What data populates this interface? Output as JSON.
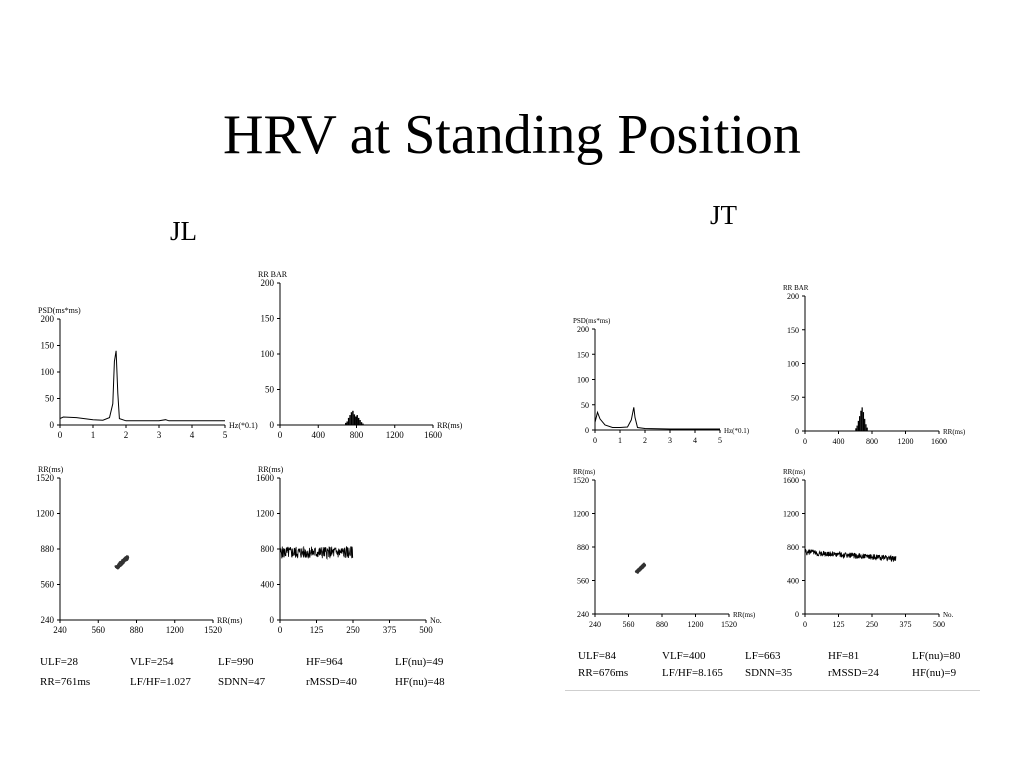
{
  "title": "HRV at Standing Position",
  "subjects": [
    {
      "label": "JL",
      "charts": [
        {
          "type": "line",
          "ylabel": "PSD(ms*ms)",
          "xlabel": "Hz(*0.1)",
          "xlim": [
            0,
            5
          ],
          "ylim": [
            0,
            200
          ],
          "xticks": [
            "0",
            "1",
            "2",
            "3",
            "4",
            "5"
          ],
          "yticks": [
            "0",
            "50",
            "100",
            "150",
            "200"
          ],
          "series": [
            {
              "x": [
                0.0,
                0.1,
                0.5,
                1.0,
                1.3,
                1.5,
                1.6,
                1.65,
                1.7,
                1.75,
                1.8,
                2.0,
                2.5,
                3.0,
                3.2,
                3.3,
                3.5,
                4.0,
                5.0
              ],
              "y": [
                12,
                15,
                14,
                10,
                9,
                14,
                40,
                120,
                140,
                60,
                12,
                8,
                8,
                8,
                10,
                8,
                8,
                8,
                8
              ]
            }
          ]
        },
        {
          "type": "bar",
          "ylabel": "RR BAR",
          "xlabel": "RR(ms)",
          "xlim": [
            0,
            1600
          ],
          "ylim": [
            0,
            200
          ],
          "xticks": [
            "0",
            "400",
            "800",
            "1200",
            "1600"
          ],
          "yticks": [
            "0",
            "50",
            "100",
            "150",
            "200"
          ],
          "bins": [
            680,
            695,
            710,
            725,
            740,
            755,
            770,
            785,
            800,
            815,
            830,
            845,
            860
          ],
          "values": [
            3,
            5,
            10,
            14,
            18,
            20,
            15,
            12,
            14,
            10,
            7,
            4,
            2
          ],
          "bin_width": 15
        },
        {
          "type": "scatter",
          "ylabel": "RR(ms)",
          "xlabel": "RR(ms)",
          "xlim": [
            240,
            1520
          ],
          "ylim": [
            240,
            1520
          ],
          "xticks": [
            "240",
            "560",
            "880",
            "1200",
            "1520"
          ],
          "yticks": [
            "240",
            "560",
            "880",
            "1200",
            "1520"
          ],
          "center": [
            761,
            761
          ],
          "spread": [
            50,
            50
          ]
        },
        {
          "type": "line",
          "ylabel": "RR(ms)",
          "xlabel": "No.",
          "xlim": [
            0,
            500
          ],
          "ylim": [
            0,
            1600
          ],
          "xticks": [
            "0",
            "125",
            "250",
            "375",
            "500"
          ],
          "yticks": [
            "0",
            "400",
            "800",
            "1200",
            "1600"
          ],
          "count": 250,
          "mean": 761,
          "amplitude": 70
        }
      ],
      "stats": [
        [
          "ULF=28",
          "VLF=254",
          "LF=990",
          "HF=964",
          "LF(nu)=49"
        ],
        [
          "RR=761ms",
          "LF/HF=1.027",
          "SDNN=47",
          "rMSSD=40",
          "HF(nu)=48"
        ]
      ]
    },
    {
      "label": "JT",
      "charts": [
        {
          "type": "line",
          "ylabel": "PSD(ms*ms)",
          "xlabel": "Hz(*0.1)",
          "xlim": [
            0,
            5
          ],
          "ylim": [
            0,
            200
          ],
          "xticks": [
            "0",
            "1",
            "2",
            "3",
            "4",
            "5"
          ],
          "yticks": [
            "0",
            "50",
            "100",
            "150",
            "200"
          ],
          "series": [
            {
              "x": [
                0.0,
                0.1,
                0.2,
                0.4,
                0.7,
                1.0,
                1.3,
                1.45,
                1.55,
                1.6,
                1.7,
                2.0,
                3.0,
                4.0,
                5.0
              ],
              "y": [
                15,
                35,
                22,
                10,
                5,
                5,
                6,
                20,
                45,
                25,
                5,
                3,
                2,
                2,
                2
              ]
            }
          ]
        },
        {
          "type": "bar",
          "ylabel": "RR BAR",
          "xlabel": "RR(ms)",
          "xlim": [
            0,
            1600
          ],
          "ylim": [
            0,
            200
          ],
          "xticks": [
            "0",
            "400",
            "800",
            "1200",
            "1600"
          ],
          "yticks": [
            "0",
            "50",
            "100",
            "150",
            "200"
          ],
          "bins": [
            600,
            615,
            630,
            645,
            660,
            675,
            690,
            705,
            720,
            735
          ],
          "values": [
            4,
            8,
            15,
            22,
            30,
            35,
            28,
            18,
            10,
            5
          ],
          "bin_width": 15
        },
        {
          "type": "scatter",
          "ylabel": "RR(ms)",
          "xlabel": "RR(ms)",
          "xlim": [
            240,
            1520
          ],
          "ylim": [
            240,
            1520
          ],
          "xticks": [
            "240",
            "560",
            "880",
            "1200",
            "1520"
          ],
          "yticks": [
            "240",
            "560",
            "880",
            "1200",
            "1520"
          ],
          "center": [
            676,
            676
          ],
          "spread": [
            40,
            40
          ]
        },
        {
          "type": "line",
          "ylabel": "RR(ms)",
          "xlabel": "No.",
          "xlim": [
            0,
            500
          ],
          "ylim": [
            0,
            1600
          ],
          "xticks": [
            "0",
            "125",
            "250",
            "375",
            "500"
          ],
          "yticks": [
            "0",
            "400",
            "800",
            "1200",
            "1600"
          ],
          "count": 340,
          "mean_start": 740,
          "mean_end": 660,
          "amplitude": 35
        }
      ],
      "stats": [
        [
          "ULF=84",
          "VLF=400",
          "LF=663",
          "HF=81",
          "LF(nu)=80"
        ],
        [
          "RR=676ms",
          "LF/HF=8.165",
          "SDNN=35",
          "rMSSD=24",
          "HF(nu)=9"
        ]
      ]
    }
  ]
}
